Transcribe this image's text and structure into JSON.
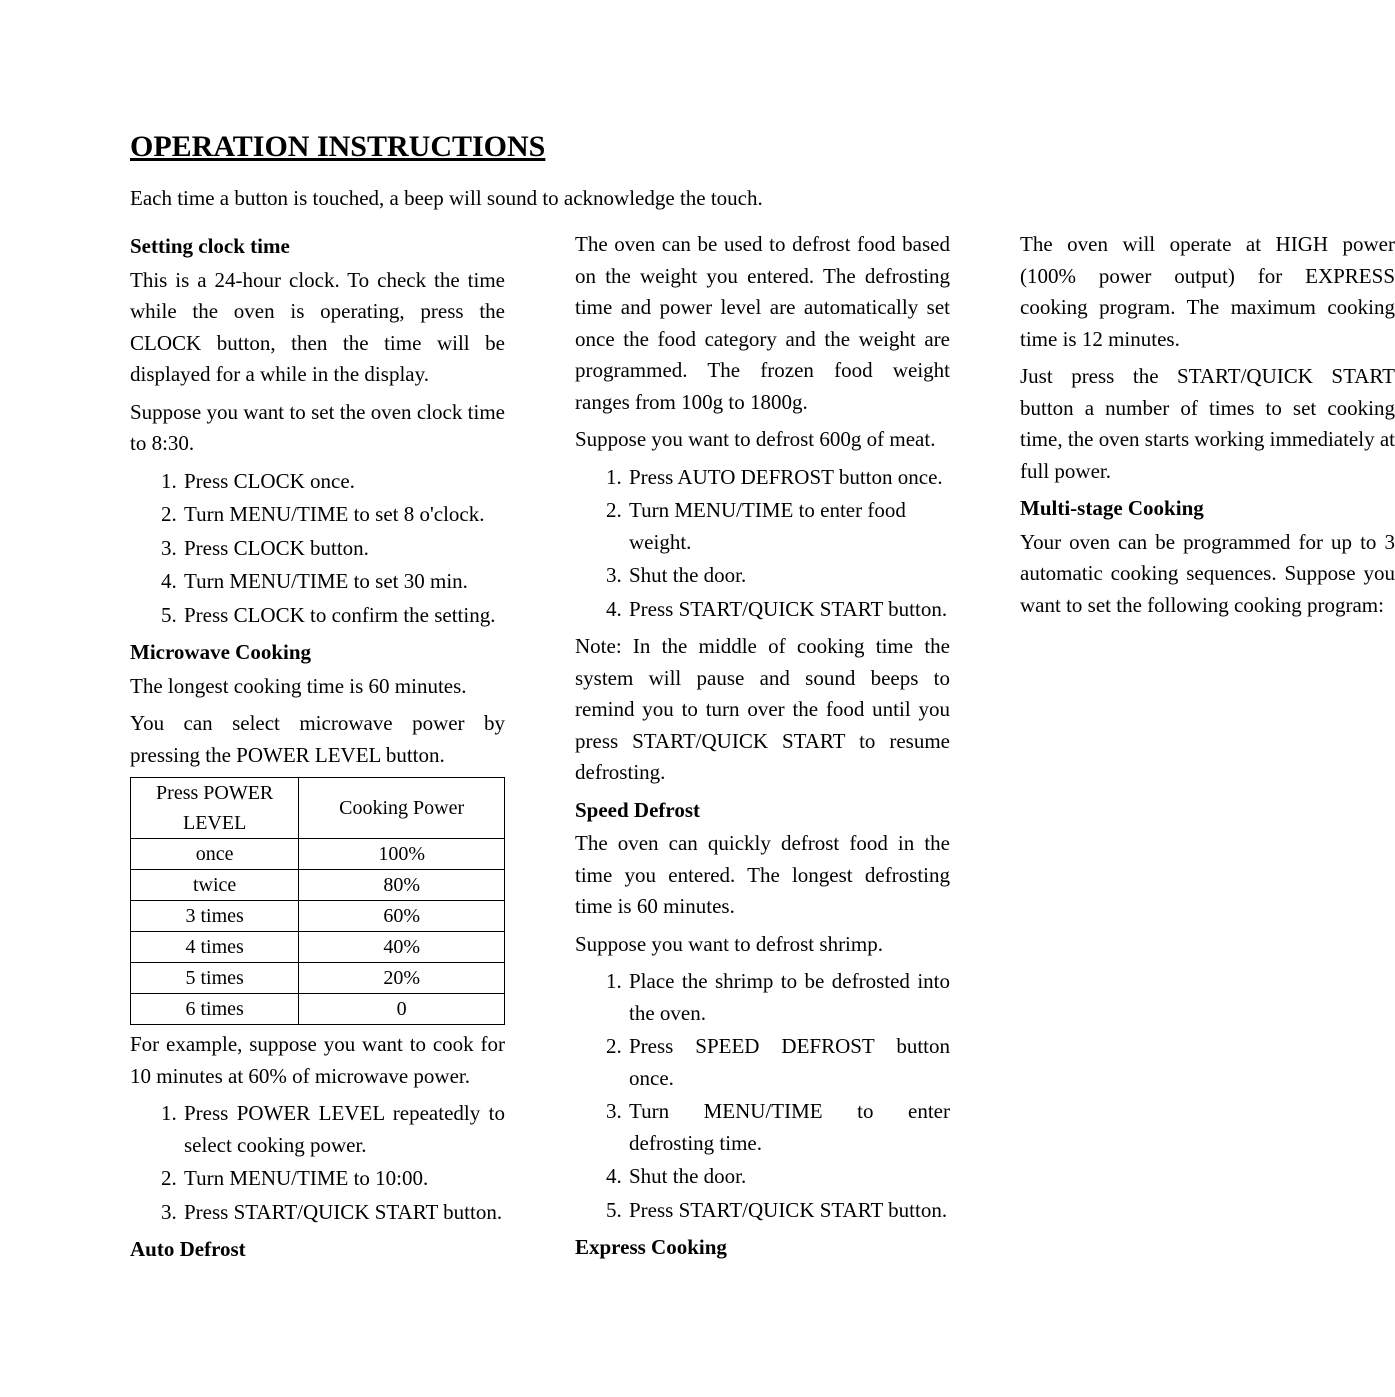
{
  "title": "OPERATION INSTRUCTIONS",
  "intro": "Each time a button is touched, a beep will sound to acknowledge the touch.",
  "clock": {
    "heading": "Setting clock time",
    "p1": "This is a 24-hour clock. To check the time while the oven is operating, press the CLOCK button, then the time will be displayed for a while in the display.",
    "p2": "Suppose you want to set the oven clock time to 8:30.",
    "steps": [
      "Press CLOCK once.",
      "Turn MENU/TIME to set 8 o'clock.",
      "Press CLOCK button.",
      "Turn MENU/TIME to set 30 min.",
      "Press CLOCK to confirm the setting."
    ]
  },
  "microwave": {
    "heading": "Microwave Cooking",
    "p1": "The longest cooking time is 60 minutes.",
    "p2": "You can select microwave power by pressing the POWER LEVEL button.",
    "table": {
      "col1": "Press POWER LEVEL",
      "col2": "Cooking Power",
      "rows": [
        {
          "press": "once",
          "power": "100%"
        },
        {
          "press": "twice",
          "power": "80%"
        },
        {
          "press": "3 times",
          "power": "60%"
        },
        {
          "press": "4 times",
          "power": "40%"
        },
        {
          "press": "5 times",
          "power": "20%"
        },
        {
          "press": "6 times",
          "power": "0"
        }
      ]
    },
    "p3": "For example, suppose you want to cook for 10 minutes at 60% of microwave power.",
    "steps": [
      "Press POWER LEVEL repeatedly to select cooking power.",
      "Turn MENU/TIME to 10:00.",
      "Press START/QUICK START button."
    ]
  },
  "autodef": {
    "heading": "Auto Defrost",
    "p1": "The oven can be used to defrost food based on the weight you entered. The defrosting time and power level are automatically set once the food category and the weight are programmed. The frozen food weight ranges from 100g to 1800g.",
    "p2": "Suppose you want to defrost 600g of meat.",
    "steps": [
      "Press AUTO DEFROST button once.",
      "Turn MENU/TIME to enter food weight.",
      "Shut the door.",
      "Press START/QUICK START button."
    ],
    "note": "Note: In the middle of cooking time the system will pause and sound beeps to remind you to turn over the food until you press START/QUICK START to resume defrosting."
  },
  "speeddef": {
    "heading": "Speed Defrost",
    "p1": "The oven can quickly defrost food in the time you entered. The longest defrosting time is 60 minutes.",
    "p2": "Suppose you want to defrost shrimp.",
    "steps": [
      "Place the shrimp to be defrosted into the oven.",
      "Press SPEED DEFROST button once.",
      "Turn MENU/TIME to enter defrosting time.",
      "Shut the door.",
      "Press START/QUICK START button."
    ]
  },
  "express": {
    "heading": "Express Cooking",
    "p1": "The oven will operate at HIGH power (100% power output) for EXPRESS cooking program. The maximum cooking time is 12 minutes.",
    "p2": "Just press the START/QUICK START button a number of times to set cooking time, the oven starts working immediately at full power."
  },
  "multi": {
    "heading": "Multi-stage Cooking",
    "p1": "Your oven can be programmed for up to 3 automatic cooking sequences. Suppose you want to set the following cooking program:"
  }
}
